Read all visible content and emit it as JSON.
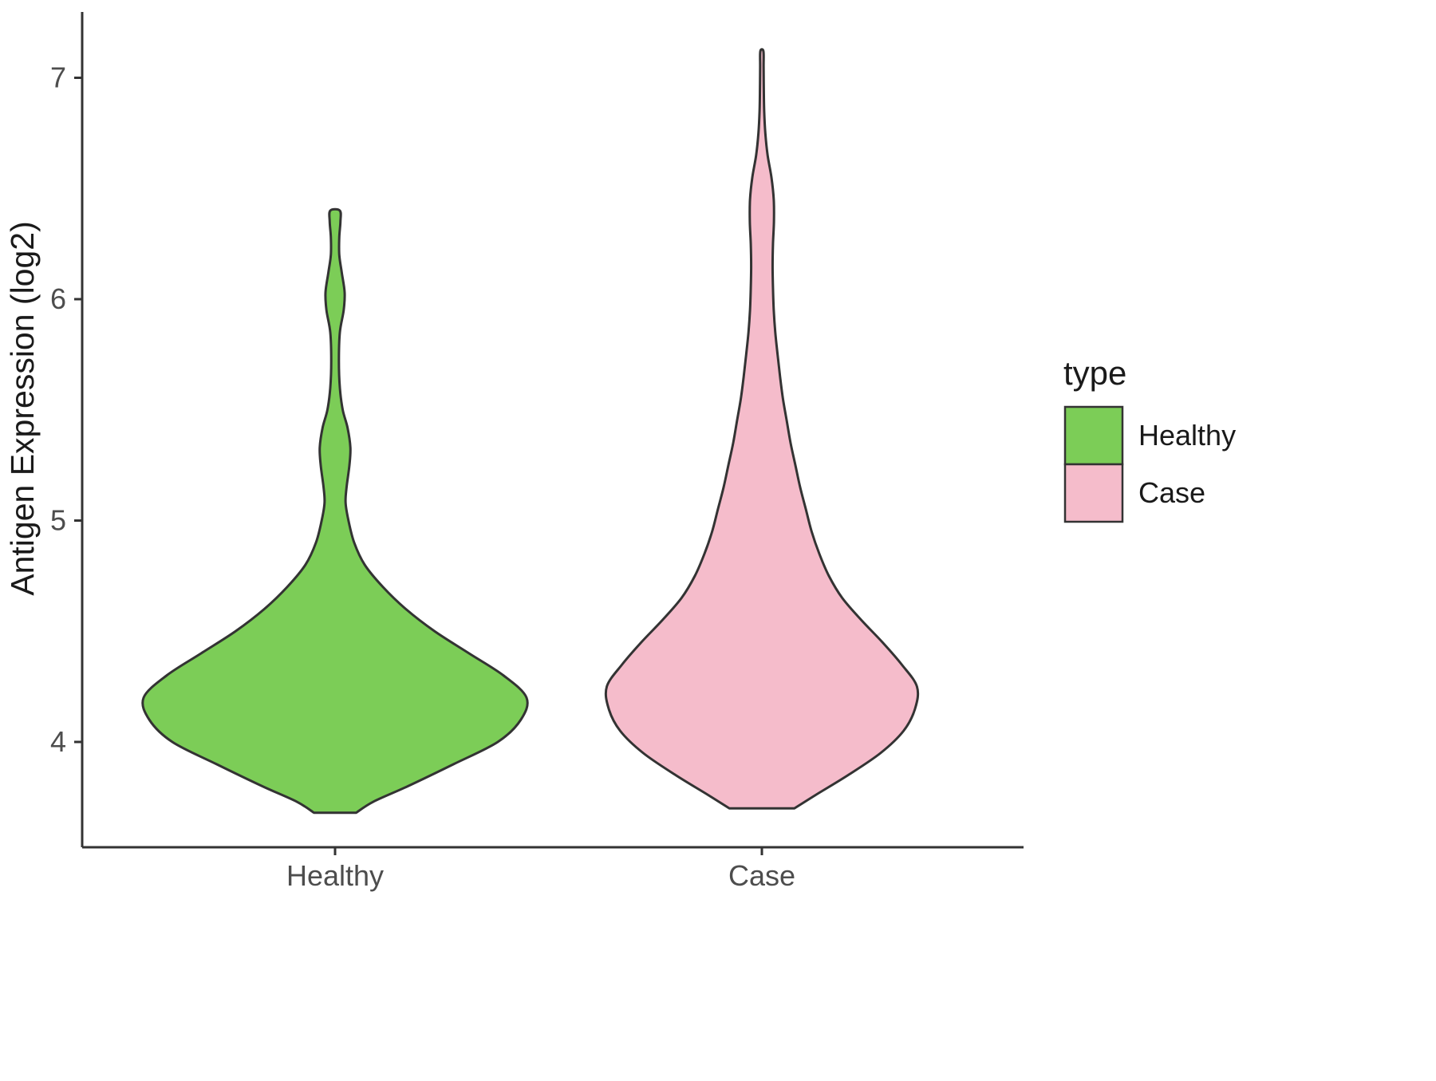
{
  "chart_data": {
    "type": "violin",
    "title": "",
    "xlabel": "",
    "ylabel": "Antigen Expression (log2)",
    "categories": [
      "Healthy",
      "Case"
    ],
    "yticks": [
      4,
      5,
      6,
      7
    ],
    "ylim": [
      3.5,
      7.3
    ],
    "grid": false,
    "stroke_color": "#333333",
    "legend": {
      "title": "type",
      "position": "right",
      "entries": [
        {
          "label": "Healthy",
          "color": "#7CCD57"
        },
        {
          "label": "Case",
          "color": "#F5BCCB"
        }
      ]
    },
    "series": [
      {
        "name": "Healthy",
        "color": "#7CCD57",
        "profile": [
          [
            3.68,
            0.11
          ],
          [
            3.73,
            0.2
          ],
          [
            3.8,
            0.38
          ],
          [
            3.9,
            0.62
          ],
          [
            4.0,
            0.85
          ],
          [
            4.1,
            0.97
          ],
          [
            4.2,
            1.0
          ],
          [
            4.3,
            0.88
          ],
          [
            4.4,
            0.7
          ],
          [
            4.5,
            0.52
          ],
          [
            4.6,
            0.37
          ],
          [
            4.7,
            0.25
          ],
          [
            4.8,
            0.155
          ],
          [
            4.9,
            0.1
          ],
          [
            5.0,
            0.07
          ],
          [
            5.08,
            0.055
          ],
          [
            5.15,
            0.06
          ],
          [
            5.25,
            0.075
          ],
          [
            5.33,
            0.08
          ],
          [
            5.42,
            0.065
          ],
          [
            5.5,
            0.04
          ],
          [
            5.6,
            0.025
          ],
          [
            5.72,
            0.02
          ],
          [
            5.85,
            0.025
          ],
          [
            5.95,
            0.045
          ],
          [
            6.03,
            0.05
          ],
          [
            6.12,
            0.035
          ],
          [
            6.2,
            0.022
          ],
          [
            6.28,
            0.022
          ],
          [
            6.35,
            0.028
          ],
          [
            6.4,
            0.025
          ]
        ]
      },
      {
        "name": "Case",
        "color": "#F5BCCB",
        "profile": [
          [
            3.7,
            0.17
          ],
          [
            3.76,
            0.28
          ],
          [
            3.85,
            0.45
          ],
          [
            3.95,
            0.62
          ],
          [
            4.05,
            0.74
          ],
          [
            4.15,
            0.8
          ],
          [
            4.25,
            0.81
          ],
          [
            4.35,
            0.73
          ],
          [
            4.45,
            0.63
          ],
          [
            4.55,
            0.52
          ],
          [
            4.65,
            0.42
          ],
          [
            4.75,
            0.35
          ],
          [
            4.85,
            0.3
          ],
          [
            4.95,
            0.26
          ],
          [
            5.05,
            0.23
          ],
          [
            5.15,
            0.2
          ],
          [
            5.25,
            0.175
          ],
          [
            5.35,
            0.15
          ],
          [
            5.45,
            0.13
          ],
          [
            5.55,
            0.11
          ],
          [
            5.65,
            0.095
          ],
          [
            5.75,
            0.082
          ],
          [
            5.85,
            0.07
          ],
          [
            5.95,
            0.062
          ],
          [
            6.05,
            0.058
          ],
          [
            6.15,
            0.056
          ],
          [
            6.25,
            0.058
          ],
          [
            6.35,
            0.063
          ],
          [
            6.45,
            0.062
          ],
          [
            6.55,
            0.05
          ],
          [
            6.65,
            0.03
          ],
          [
            6.75,
            0.018
          ],
          [
            6.85,
            0.012
          ],
          [
            6.95,
            0.01
          ],
          [
            7.05,
            0.009
          ],
          [
            7.12,
            0.008
          ]
        ]
      }
    ]
  }
}
